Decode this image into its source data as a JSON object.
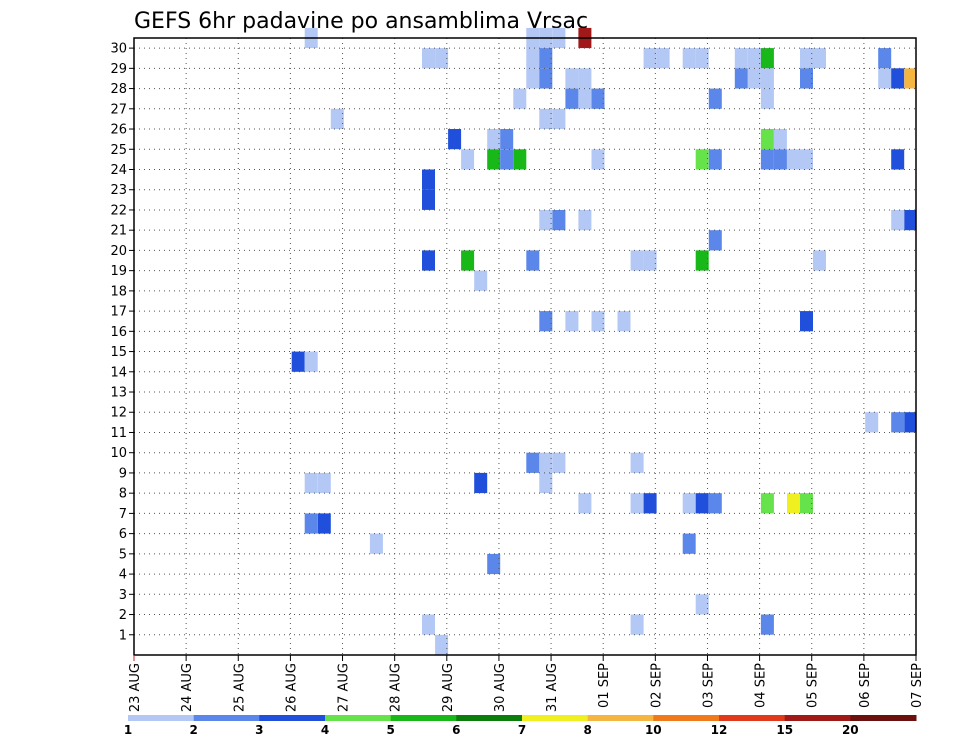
{
  "chart_data": {
    "type": "heatmap",
    "title": "GEFS 6hr padavine po ansamblima Vrsac",
    "x_tick_labels": [
      "23 AUG",
      "24 AUG",
      "25 AUG",
      "26 AUG",
      "27 AUG",
      "28 AUG",
      "29 AUG",
      "30 AUG",
      "31 AUG",
      "01 SEP",
      "02 SEP",
      "03 SEP",
      "04 SEP",
      "05 SEP",
      "06 SEP",
      "07 SEP"
    ],
    "y_tick_labels": [
      "1",
      "2",
      "3",
      "4",
      "5",
      "6",
      "7",
      "8",
      "9",
      "10",
      "11",
      "12",
      "13",
      "14",
      "15",
      "16",
      "17",
      "18",
      "19",
      "20",
      "21",
      "22",
      "23",
      "24",
      "25",
      "26",
      "27",
      "28",
      "29",
      "30"
    ],
    "xlim_days": [
      0,
      15
    ],
    "ylim_members": [
      0,
      30
    ],
    "grid": true,
    "colorbar": {
      "position": "bottom",
      "labels": [
        "1",
        "2",
        "3",
        "4",
        "5",
        "6",
        "7",
        "8",
        "10",
        "12",
        "15",
        "20"
      ],
      "colors": [
        "#b3c8f5",
        "#5b87ea",
        "#1f4fdb",
        "#66e24a",
        "#17b817",
        "#0b7d0b",
        "#f0f020",
        "#f5b641",
        "#f07a1a",
        "#e03a1a",
        "#a01818",
        "#6b0f0f"
      ]
    },
    "cells": [
      {
        "d": 3.4,
        "m": 30,
        "c": 1
      },
      {
        "d": 7.65,
        "m": 30,
        "c": 1
      },
      {
        "d": 7.9,
        "m": 30,
        "c": 1
      },
      {
        "d": 8.15,
        "m": 30,
        "c": 1
      },
      {
        "d": 8.65,
        "m": 30,
        "c": 11
      },
      {
        "d": 5.65,
        "m": 29,
        "c": 1
      },
      {
        "d": 5.9,
        "m": 29,
        "c": 1
      },
      {
        "d": 7.65,
        "m": 29,
        "c": 1
      },
      {
        "d": 7.9,
        "m": 29,
        "c": 2
      },
      {
        "d": 9.9,
        "m": 29,
        "c": 1
      },
      {
        "d": 10.15,
        "m": 29,
        "c": 1
      },
      {
        "d": 10.65,
        "m": 29,
        "c": 1
      },
      {
        "d": 10.9,
        "m": 29,
        "c": 1
      },
      {
        "d": 11.65,
        "m": 29,
        "c": 1
      },
      {
        "d": 11.9,
        "m": 29,
        "c": 1
      },
      {
        "d": 12.15,
        "m": 29,
        "c": 5
      },
      {
        "d": 12.9,
        "m": 29,
        "c": 1
      },
      {
        "d": 13.15,
        "m": 29,
        "c": 1
      },
      {
        "d": 14.4,
        "m": 29,
        "c": 2
      },
      {
        "d": 7.65,
        "m": 28,
        "c": 1
      },
      {
        "d": 7.9,
        "m": 28,
        "c": 2
      },
      {
        "d": 8.4,
        "m": 28,
        "c": 1
      },
      {
        "d": 8.65,
        "m": 28,
        "c": 1
      },
      {
        "d": 11.65,
        "m": 28,
        "c": 2
      },
      {
        "d": 11.9,
        "m": 28,
        "c": 1
      },
      {
        "d": 12.15,
        "m": 28,
        "c": 1
      },
      {
        "d": 12.9,
        "m": 28,
        "c": 2
      },
      {
        "d": 14.4,
        "m": 28,
        "c": 1
      },
      {
        "d": 14.65,
        "m": 28,
        "c": 3
      },
      {
        "d": 14.9,
        "m": 28,
        "c": 8
      },
      {
        "d": 7.4,
        "m": 27,
        "c": 1
      },
      {
        "d": 8.4,
        "m": 27,
        "c": 2
      },
      {
        "d": 8.65,
        "m": 27,
        "c": 1
      },
      {
        "d": 8.9,
        "m": 27,
        "c": 2
      },
      {
        "d": 11.15,
        "m": 27,
        "c": 2
      },
      {
        "d": 12.15,
        "m": 27,
        "c": 1
      },
      {
        "d": 3.9,
        "m": 26,
        "c": 1
      },
      {
        "d": 7.9,
        "m": 26,
        "c": 1
      },
      {
        "d": 8.15,
        "m": 26,
        "c": 1
      },
      {
        "d": 6.15,
        "m": 25,
        "c": 3
      },
      {
        "d": 6.9,
        "m": 25,
        "c": 1
      },
      {
        "d": 7.15,
        "m": 25,
        "c": 2
      },
      {
        "d": 12.15,
        "m": 25,
        "c": 4
      },
      {
        "d": 12.4,
        "m": 25,
        "c": 1
      },
      {
        "d": 6.4,
        "m": 24,
        "c": 1
      },
      {
        "d": 6.9,
        "m": 24,
        "c": 5
      },
      {
        "d": 7.15,
        "m": 24,
        "c": 2
      },
      {
        "d": 7.4,
        "m": 24,
        "c": 5
      },
      {
        "d": 8.9,
        "m": 24,
        "c": 1
      },
      {
        "d": 10.9,
        "m": 24,
        "c": 4
      },
      {
        "d": 11.15,
        "m": 24,
        "c": 2
      },
      {
        "d": 12.15,
        "m": 24,
        "c": 2
      },
      {
        "d": 12.4,
        "m": 24,
        "c": 2
      },
      {
        "d": 12.65,
        "m": 24,
        "c": 1
      },
      {
        "d": 12.9,
        "m": 24,
        "c": 1
      },
      {
        "d": 14.65,
        "m": 24,
        "c": 3
      },
      {
        "d": 5.65,
        "m": 23,
        "c": 3
      },
      {
        "d": 5.65,
        "m": 22,
        "c": 3
      },
      {
        "d": 7.9,
        "m": 21,
        "c": 1
      },
      {
        "d": 8.15,
        "m": 21,
        "c": 2
      },
      {
        "d": 8.65,
        "m": 21,
        "c": 1
      },
      {
        "d": 14.65,
        "m": 21,
        "c": 1
      },
      {
        "d": 14.9,
        "m": 21,
        "c": 3
      },
      {
        "d": 11.15,
        "m": 20,
        "c": 2
      },
      {
        "d": 5.65,
        "m": 19,
        "c": 3
      },
      {
        "d": 6.4,
        "m": 19,
        "c": 5
      },
      {
        "d": 7.65,
        "m": 19,
        "c": 2
      },
      {
        "d": 9.65,
        "m": 19,
        "c": 1
      },
      {
        "d": 9.9,
        "m": 19,
        "c": 1
      },
      {
        "d": 10.9,
        "m": 19,
        "c": 5
      },
      {
        "d": 13.15,
        "m": 19,
        "c": 1
      },
      {
        "d": 6.65,
        "m": 18,
        "c": 1
      },
      {
        "d": 7.9,
        "m": 16,
        "c": 2
      },
      {
        "d": 8.4,
        "m": 16,
        "c": 1
      },
      {
        "d": 8.9,
        "m": 16,
        "c": 1
      },
      {
        "d": 9.4,
        "m": 16,
        "c": 1
      },
      {
        "d": 12.9,
        "m": 16,
        "c": 3
      },
      {
        "d": 3.15,
        "m": 14,
        "c": 3
      },
      {
        "d": 3.4,
        "m": 14,
        "c": 1
      },
      {
        "d": 14.15,
        "m": 11,
        "c": 1
      },
      {
        "d": 14.65,
        "m": 11,
        "c": 2
      },
      {
        "d": 14.9,
        "m": 11,
        "c": 3
      },
      {
        "d": 7.65,
        "m": 9,
        "c": 2
      },
      {
        "d": 7.9,
        "m": 9,
        "c": 1
      },
      {
        "d": 8.15,
        "m": 9,
        "c": 1
      },
      {
        "d": 9.65,
        "m": 9,
        "c": 1
      },
      {
        "d": 3.4,
        "m": 8,
        "c": 1
      },
      {
        "d": 3.65,
        "m": 8,
        "c": 1
      },
      {
        "d": 6.65,
        "m": 8,
        "c": 3
      },
      {
        "d": 7.9,
        "m": 8,
        "c": 1
      },
      {
        "d": 8.65,
        "m": 7,
        "c": 1
      },
      {
        "d": 9.65,
        "m": 7,
        "c": 1
      },
      {
        "d": 9.9,
        "m": 7,
        "c": 3
      },
      {
        "d": 10.65,
        "m": 7,
        "c": 1
      },
      {
        "d": 10.9,
        "m": 7,
        "c": 3
      },
      {
        "d": 11.15,
        "m": 7,
        "c": 2
      },
      {
        "d": 12.15,
        "m": 7,
        "c": 4
      },
      {
        "d": 12.65,
        "m": 7,
        "c": 7
      },
      {
        "d": 12.9,
        "m": 7,
        "c": 4
      },
      {
        "d": 3.4,
        "m": 6,
        "c": 2
      },
      {
        "d": 3.65,
        "m": 6,
        "c": 3
      },
      {
        "d": 4.65,
        "m": 5,
        "c": 1
      },
      {
        "d": 10.65,
        "m": 5,
        "c": 2
      },
      {
        "d": 6.9,
        "m": 4,
        "c": 2
      },
      {
        "d": 10.9,
        "m": 2,
        "c": 1
      },
      {
        "d": 5.65,
        "m": 1,
        "c": 1
      },
      {
        "d": 9.65,
        "m": 1,
        "c": 1
      },
      {
        "d": 12.15,
        "m": 1,
        "c": 2
      },
      {
        "d": 5.9,
        "m": 0,
        "c": 1
      }
    ]
  }
}
